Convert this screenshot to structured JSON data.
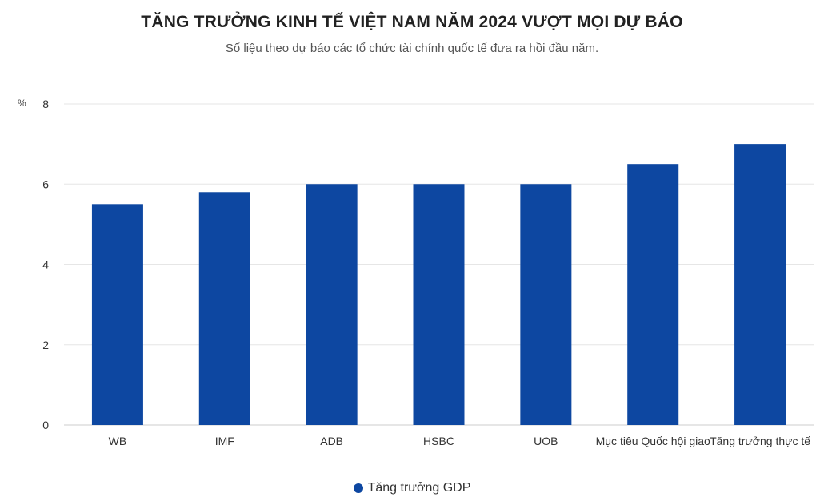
{
  "header": {
    "title": "TĂNG TRƯỞNG KINH TẾ VIỆT NAM NĂM 2024 VƯỢT MỌI DỰ BÁO",
    "subtitle": "Số liệu theo dự báo các tổ chức tài chính quốc tế đưa ra hồi đầu năm."
  },
  "chart_data": {
    "type": "bar",
    "categories": [
      "WB",
      "IMF",
      "ADB",
      "HSBC",
      "UOB",
      "Mục tiêu Quốc hội giao",
      "Tăng trưởng thực tế"
    ],
    "series": [
      {
        "name": "Tăng trưởng GDP",
        "values": [
          5.5,
          5.8,
          6.0,
          6.0,
          6.0,
          6.5,
          7.0
        ]
      }
    ],
    "ylabel": "%",
    "ylim": [
      0,
      8
    ],
    "yticks": [
      0,
      2,
      4,
      6,
      8
    ],
    "grid": true,
    "legend_position": "bottom",
    "colors": {
      "bar": "#0d47a1",
      "grid": "#e6e6e6",
      "axis": "#cccccc"
    }
  }
}
